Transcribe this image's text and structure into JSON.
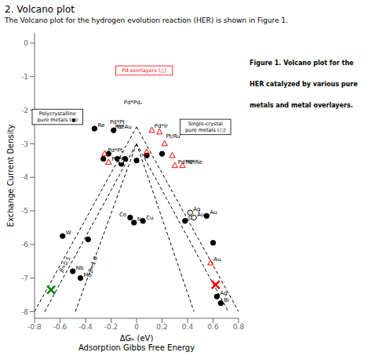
{
  "chart_data": {
    "type": "scatter",
    "title": "2. Volcano plot",
    "subtitle": "The Volcano plot for the hydrogen evolution reaction (HER) is shown in Figure 1.",
    "xlabel": [
      "ΔGₕ (eV)",
      "Adsorption Gibbs Free Energy"
    ],
    "ylabel": "Exchange Current Density",
    "xlim": [
      -0.8,
      0.8
    ],
    "ylim": [
      -8.2,
      0.3
    ],
    "xticks": [
      -0.8,
      -0.6,
      -0.4,
      -0.2,
      0,
      0.2,
      0.4,
      0.6,
      0.8
    ],
    "yticks": [
      0,
      -1,
      -2,
      -3,
      -4,
      -5,
      -6,
      -7,
      -8
    ],
    "grid": false,
    "series": [
      {
        "type": "scatter",
        "marker": "circle",
        "color": "#000000",
        "x": [
          -0.58,
          -0.5,
          -0.44,
          -0.38,
          -0.33,
          -0.26,
          -0.22,
          -0.18,
          -0.15,
          -0.12,
          -0.09,
          -0.05,
          -0.02,
          0,
          0.05,
          0.08,
          0.2,
          0.38,
          0.55,
          0.6,
          0.63,
          0.66
        ],
        "values": [
          -5.75,
          -6.8,
          -7.0,
          -5.85,
          -2.55,
          -3.45,
          -3.3,
          -2.6,
          -3.45,
          -3.6,
          -3.45,
          -5.2,
          -5.35,
          -3.5,
          -5.3,
          -3.35,
          -3.3,
          -5.3,
          -5.15,
          -5.95,
          -7.55,
          -7.75
        ],
        "point_labels": [
          "W",
          "Nb",
          "Mo",
          null,
          "Re",
          null,
          null,
          "Pd",
          null,
          null,
          null,
          "Co",
          "Ni",
          null,
          "Cu",
          null,
          null,
          "Cu",
          "Au",
          null,
          "Ag",
          "Bi"
        ]
      },
      {
        "type": "scatter",
        "marker": "circle_open",
        "color": "#000000",
        "x": [
          -0.12,
          0.42,
          0.45
        ],
        "values": [
          -3.5,
          -5.05,
          -5.2
        ],
        "point_labels": [
          null,
          "Ag",
          "Au"
        ]
      },
      {
        "type": "scatter",
        "marker": "triangle_open",
        "color": "#ff0000",
        "x": [
          -0.25,
          -0.22,
          0.08,
          0.12,
          0.18,
          0.22,
          0.28,
          0.3,
          0.36,
          0.58
        ],
        "values": [
          -3.3,
          -3.55,
          -3.25,
          -2.6,
          -2.65,
          -3.0,
          -3.35,
          -3.65,
          -3.65,
          -6.55
        ],
        "point_labels": [
          "Pd*Pt",
          "Pd*Au",
          null,
          null,
          null,
          null,
          null,
          "Pd*Rh",
          "Pd*Re",
          "Au"
        ]
      },
      {
        "type": "scatter",
        "marker": "x",
        "color": "#008000",
        "x": [
          -0.67
        ],
        "values": [
          -7.35
        ]
      },
      {
        "type": "scatter",
        "marker": "x",
        "color": "#ff0000",
        "x": [
          0.62
        ],
        "values": [
          -7.2
        ]
      }
    ],
    "lines": [
      {
        "line_style": "dashed",
        "color": "#000000",
        "x": [
          -0.8,
          0
        ],
        "values": [
          -8.0,
          -2.5
        ]
      },
      {
        "line_style": "dashed",
        "color": "#000000",
        "x": [
          0,
          0.8
        ],
        "values": [
          -2.5,
          -8.0
        ]
      },
      {
        "line_style": "dashed",
        "color": "#000000",
        "x": [
          -0.72,
          0
        ],
        "values": [
          -8.0,
          -3.0
        ]
      },
      {
        "line_style": "dashed",
        "color": "#000000",
        "x": [
          -0.48,
          0
        ],
        "values": [
          -8.0,
          -3.0
        ]
      },
      {
        "line_style": "dashed",
        "color": "#000000",
        "x": [
          0,
          0.72
        ],
        "values": [
          -3.0,
          -8.0
        ]
      },
      {
        "line_style": "dashed",
        "color": "#000000",
        "x": [
          0,
          0.45
        ],
        "values": [
          -3.0,
          -8.0
        ]
      }
    ],
    "annotations": [
      {
        "x": -0.56,
        "y": -6.6,
        "text": "β=0.5"
      },
      {
        "x": -0.34,
        "y": -6.6,
        "text": "β=1.0"
      },
      {
        "x": -0.1,
        "y": -1.82,
        "text": "Pd*Pdₓ"
      },
      {
        "x": 0.14,
        "y": -2.52,
        "text": "Pd*Ir"
      },
      {
        "x": 0.23,
        "y": -2.82,
        "text": "Pt/Ru"
      },
      {
        "x": -0.21,
        "y": -2.42,
        "text": "Pd*Pt"
      },
      {
        "x": -0.17,
        "y": -2.55,
        "text": "Pd*Au"
      }
    ],
    "boxes": [
      {
        "x": 0.06,
        "y": -0.82,
        "text": "Pd overlayers (△)",
        "color": "#ff0000"
      },
      {
        "x": -0.62,
        "y": -2.2,
        "text": "Polycrystalline\npure metals (●)",
        "color": "#000000"
      },
      {
        "x": 0.54,
        "y": -2.5,
        "text": "Single-crystal\npure metals (○)",
        "color": "#000000"
      }
    ],
    "caption": [
      "Figure 1. Volcano plot for the",
      "HER catalyzed by various pure",
      "metals and metal overlayers."
    ]
  }
}
